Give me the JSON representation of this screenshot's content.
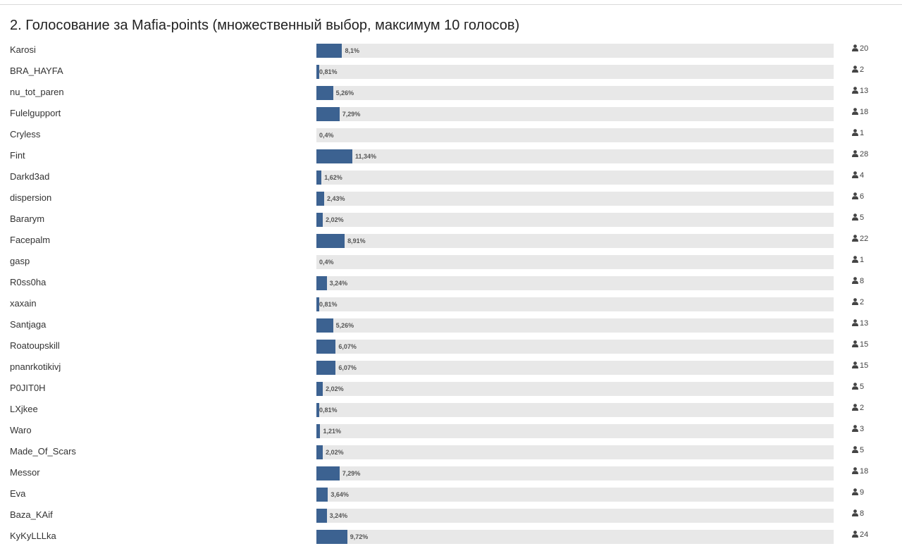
{
  "poll": {
    "title": "2. Голосование за Mafia-points (множественный выбор, максимум 10 голосов)",
    "accent_color": "#3c6291",
    "track_color": "#e8e8e8",
    "count_icon": "user-icon",
    "options": [
      {
        "label": "Karosi",
        "percent_text": "8,1%",
        "percent": 8.1,
        "votes": "20"
      },
      {
        "label": "BRA_HAYFA",
        "percent_text": "0,81%",
        "percent": 0.81,
        "votes": "2"
      },
      {
        "label": "nu_tot_paren",
        "percent_text": "5,26%",
        "percent": 5.26,
        "votes": "13"
      },
      {
        "label": "Fulelgupport",
        "percent_text": "7,29%",
        "percent": 7.29,
        "votes": "18"
      },
      {
        "label": "Cryless",
        "percent_text": "0,4%",
        "percent": 0.4,
        "votes": "1"
      },
      {
        "label": "Fint",
        "percent_text": "11,34%",
        "percent": 11.34,
        "votes": "28"
      },
      {
        "label": "Darkd3ad",
        "percent_text": "1,62%",
        "percent": 1.62,
        "votes": "4"
      },
      {
        "label": "dispersion",
        "percent_text": "2,43%",
        "percent": 2.43,
        "votes": "6"
      },
      {
        "label": "Bararym",
        "percent_text": "2,02%",
        "percent": 2.02,
        "votes": "5"
      },
      {
        "label": "Facepalm",
        "percent_text": "8,91%",
        "percent": 8.91,
        "votes": "22"
      },
      {
        "label": "gasp",
        "percent_text": "0,4%",
        "percent": 0.4,
        "votes": "1"
      },
      {
        "label": "R0ss0ha",
        "percent_text": "3,24%",
        "percent": 3.24,
        "votes": "8"
      },
      {
        "label": "xaxain",
        "percent_text": "0,81%",
        "percent": 0.81,
        "votes": "2"
      },
      {
        "label": "Santjaga",
        "percent_text": "5,26%",
        "percent": 5.26,
        "votes": "13"
      },
      {
        "label": "Roatoupskill",
        "percent_text": "6,07%",
        "percent": 6.07,
        "votes": "15"
      },
      {
        "label": "pnanrkotikivj",
        "percent_text": "6,07%",
        "percent": 6.07,
        "votes": "15"
      },
      {
        "label": "P0JIT0H",
        "percent_text": "2,02%",
        "percent": 2.02,
        "votes": "5"
      },
      {
        "label": "LXjkee",
        "percent_text": "0,81%",
        "percent": 0.81,
        "votes": "2"
      },
      {
        "label": "Waro",
        "percent_text": "1,21%",
        "percent": 1.21,
        "votes": "3"
      },
      {
        "label": "Made_Of_Scars",
        "percent_text": "2,02%",
        "percent": 2.02,
        "votes": "5"
      },
      {
        "label": "Messor",
        "percent_text": "7,29%",
        "percent": 7.29,
        "votes": "18"
      },
      {
        "label": "Eva",
        "percent_text": "3,64%",
        "percent": 3.64,
        "votes": "9"
      },
      {
        "label": "Baza_KAif",
        "percent_text": "3,24%",
        "percent": 3.24,
        "votes": "8"
      },
      {
        "label": "KyKyLLLka",
        "percent_text": "9,72%",
        "percent": 9.72,
        "votes": "24"
      }
    ]
  }
}
